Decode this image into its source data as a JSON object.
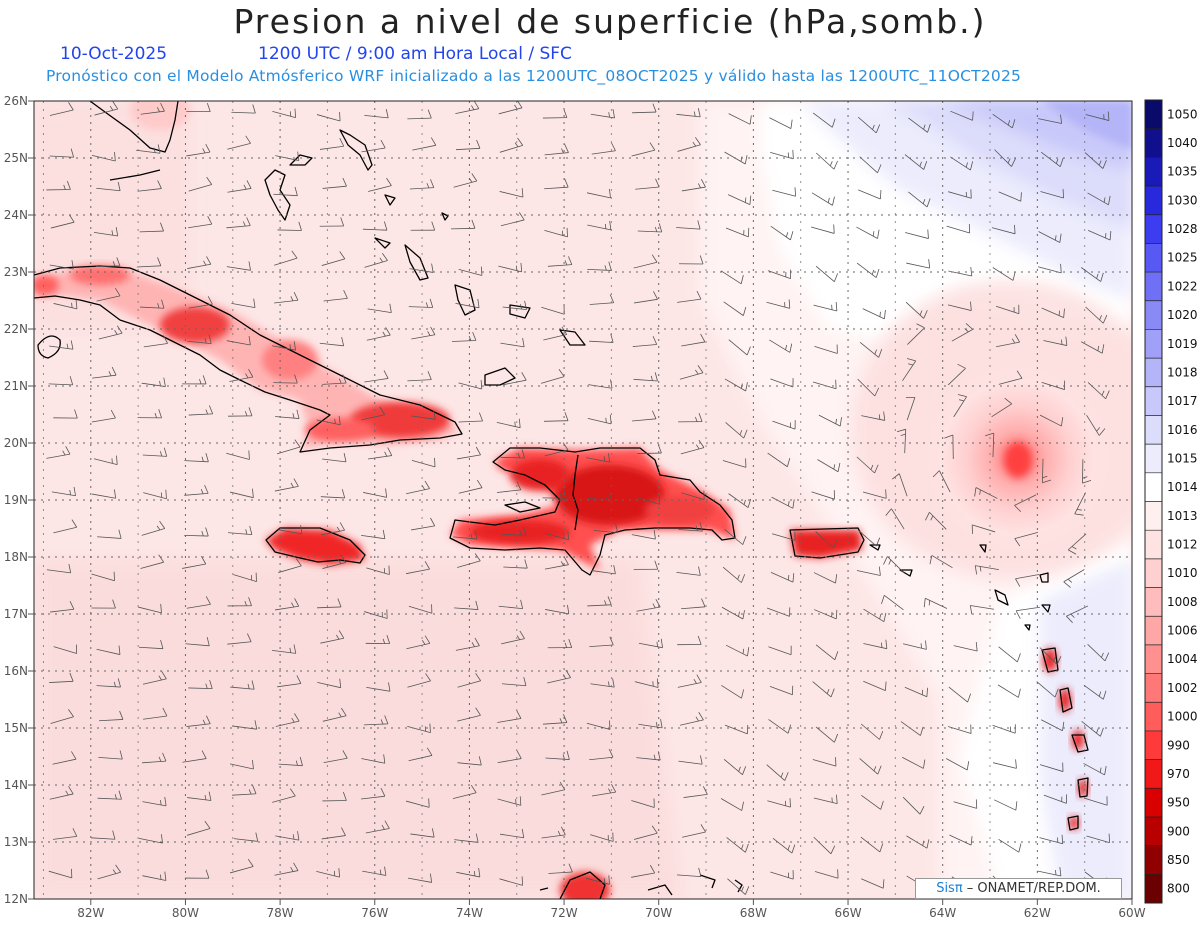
{
  "title": "Presion a nivel de superficie (hPa,somb.)",
  "date": "10-Oct-2025",
  "valid_line": "1200 UTC / 9:00 am Hora Local / SFC",
  "forecast_line": "Pronóstico con el Modelo Atmósferico WRF inicializado a las 1200UTC_08OCT2025 y válido hasta las  1200UTC_11OCT2025",
  "credit": {
    "brand": "Sisπ",
    "text": " – ONAMET/REP.DOM."
  },
  "map": {
    "lat_labels": [
      "26N",
      "25N",
      "24N",
      "23N",
      "22N",
      "21N",
      "20N",
      "19N",
      "18N",
      "17N",
      "16N",
      "15N",
      "14N",
      "13N",
      "12N"
    ],
    "lon_labels": [
      "82W",
      "80W",
      "78W",
      "76W",
      "74W",
      "72W",
      "70W",
      "68W",
      "66W",
      "64W",
      "62W",
      "60W"
    ],
    "lat_range": [
      12,
      26
    ],
    "lon_range": [
      -83.2,
      -60
    ]
  },
  "colorbar": {
    "labels": [
      "1050",
      "1040",
      "1035",
      "1030",
      "1028",
      "1025",
      "1022",
      "1020",
      "1019",
      "1018",
      "1017",
      "1016",
      "1015",
      "1014",
      "1013",
      "1012",
      "1010",
      "1008",
      "1006",
      "1004",
      "1002",
      "1000",
      "990",
      "970",
      "950",
      "900",
      "850",
      "800"
    ],
    "colors": [
      "#0a0a6a",
      "#10108f",
      "#1a1ab8",
      "#2828dc",
      "#3c3cf0",
      "#5858f4",
      "#7070f6",
      "#8a8af7",
      "#a0a0f8",
      "#b4b4f8",
      "#c8c8fa",
      "#dcdcfb",
      "#ececfd",
      "#ffffff",
      "#fff0f0",
      "#ffe2e2",
      "#ffd0d0",
      "#ffbcbc",
      "#ffa6a6",
      "#ff9090",
      "#ff7878",
      "#ff5c5c",
      "#ff3a3a",
      "#f01818",
      "#d80000",
      "#b80000",
      "#900000",
      "#6a0000"
    ]
  }
}
